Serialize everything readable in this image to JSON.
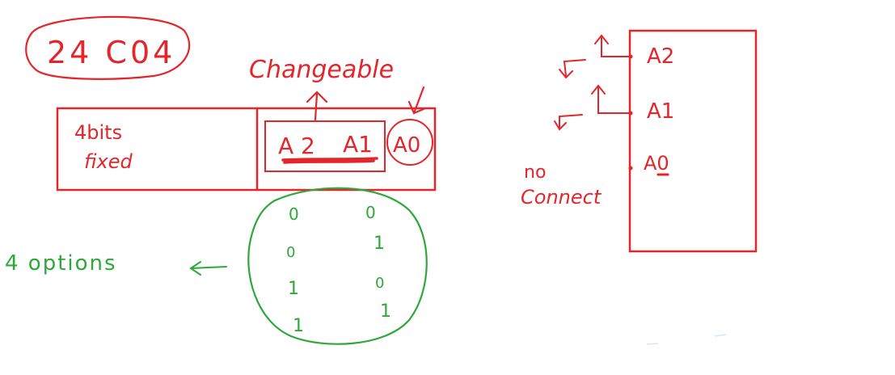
{
  "colors": {
    "red": "#e3262b",
    "green": "#2ea83a",
    "background": "#ffffff"
  },
  "title_label": "24 C04",
  "changeable_label": "Changeable",
  "address_box": {
    "fixed_label_line1": "4bits",
    "fixed_label_line2": "fixed",
    "a2": "A 2",
    "a1": "A1",
    "a0": "A0"
  },
  "options": {
    "label": "4 options",
    "col1": [
      "0",
      "0",
      "1",
      "1"
    ],
    "col2": [
      "0",
      "1",
      "0",
      "1"
    ]
  },
  "chip": {
    "pins": [
      "A2",
      "A1",
      "A0"
    ],
    "no_connect_line1": "no",
    "no_connect_line2": "Connect"
  }
}
